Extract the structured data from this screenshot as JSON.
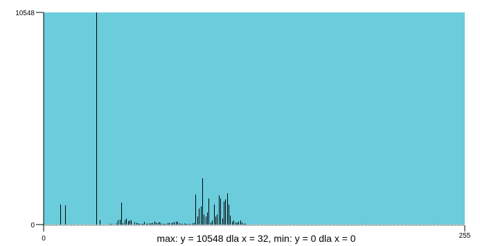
{
  "colors": {
    "plot_background": "#6BCCDC",
    "bar": "#000000",
    "axis": "#000000",
    "page_background": "#ffffff"
  },
  "chart_data": {
    "type": "bar",
    "title": "",
    "xlabel": "",
    "ylabel": "",
    "xlim": [
      0,
      255
    ],
    "ylim": [
      0,
      10548
    ],
    "x_ticks": [
      "0",
      "255"
    ],
    "y_ticks": [
      "0",
      "10548"
    ],
    "caption": "max: y = 10548 dla x = 32, min: y = 0 dla x = 0",
    "grid": false,
    "legend": "none",
    "x": [
      10,
      13,
      32,
      34,
      40,
      41,
      44,
      45,
      46,
      47,
      48,
      49,
      50,
      51,
      52,
      53,
      55,
      56,
      57,
      58,
      59,
      60,
      61,
      62,
      63,
      64,
      65,
      66,
      67,
      68,
      69,
      70,
      71,
      72,
      73,
      74,
      75,
      76,
      77,
      78,
      79,
      80,
      81,
      82,
      83,
      84,
      85,
      86,
      87,
      88,
      89,
      90,
      91,
      92,
      93,
      94,
      95,
      96,
      97,
      98,
      99,
      100,
      101,
      102,
      103,
      104,
      105,
      106,
      107,
      108,
      109,
      110,
      111,
      112,
      113,
      114,
      115,
      116,
      117,
      118,
      119,
      120,
      121,
      122
    ],
    "values": [
      1000,
      950,
      10548,
      220,
      30,
      40,
      60,
      220,
      250,
      1100,
      60,
      220,
      300,
      180,
      200,
      220,
      120,
      80,
      60,
      40,
      30,
      40,
      130,
      40,
      50,
      60,
      60,
      80,
      150,
      100,
      90,
      120,
      60,
      40,
      30,
      30,
      80,
      80,
      60,
      90,
      120,
      150,
      140,
      60,
      40,
      40,
      50,
      40,
      30,
      30,
      30,
      60,
      80,
      1500,
      400,
      800,
      900,
      2300,
      500,
      400,
      600,
      1300,
      100,
      200,
      1000,
      400,
      500,
      1450,
      1300,
      300,
      1150,
      1250,
      1550,
      1000,
      450,
      150,
      200,
      100,
      100,
      150,
      200,
      100,
      50,
      40
    ]
  }
}
